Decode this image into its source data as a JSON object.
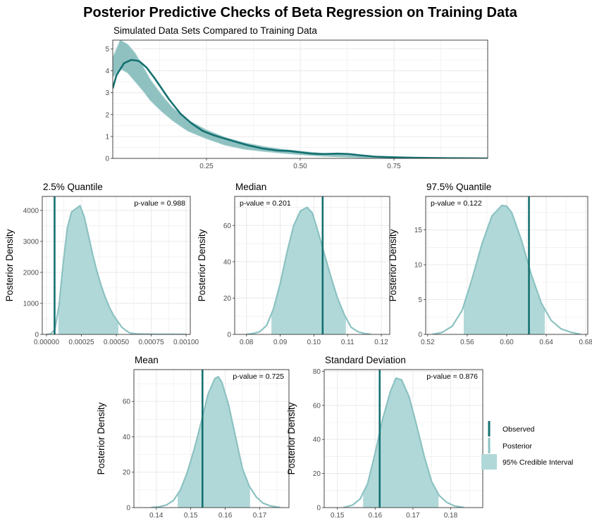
{
  "title": "Posterior Predictive Checks of Beta Regression on Training Data",
  "colors": {
    "observed": "#157070",
    "posterior_line": "#8cc2c2",
    "interval_fill": "#b1d8d8",
    "sim_fill": "#8fc1c1",
    "grid": "#ebebeb",
    "panel_border": "#333333",
    "text": "#000000",
    "tick_text": "#4d4d4d"
  },
  "legend": {
    "placement": "right",
    "items": [
      {
        "label": "Observed",
        "kind": "observed-line"
      },
      {
        "label": "Posterior",
        "kind": "posterior-line"
      },
      {
        "label": "95% Credible Interval",
        "kind": "interval-fill"
      }
    ]
  },
  "chart_data": [
    {
      "id": "overlay",
      "type": "area",
      "subtitle": "Simulated Data Sets Compared to Training Data",
      "xlim": [
        0,
        1
      ],
      "ylim": [
        0,
        5.4
      ],
      "xticks": [
        0.25,
        0.5,
        0.75
      ],
      "xtick_labels": [
        "0.25",
        "0.50",
        "0.75"
      ],
      "yticks": [
        0,
        1,
        2,
        3,
        4,
        5
      ],
      "ytick_labels": [
        "0",
        "1",
        "2",
        "3",
        "4",
        "5"
      ],
      "grid": true,
      "band_x": [
        0,
        0.02,
        0.04,
        0.06,
        0.08,
        0.1,
        0.13,
        0.16,
        0.2,
        0.25,
        0.3,
        0.35,
        0.4,
        0.45,
        0.5,
        0.55,
        0.6,
        0.65,
        0.7,
        0.75,
        0.8,
        0.85,
        0.9,
        0.95,
        1.0
      ],
      "band_upper": [
        4.6,
        5.4,
        5.2,
        4.8,
        4.2,
        3.6,
        2.9,
        2.3,
        1.75,
        1.3,
        0.95,
        0.72,
        0.55,
        0.42,
        0.33,
        0.25,
        0.19,
        0.14,
        0.1,
        0.07,
        0.04,
        0.02,
        0.01,
        0.005,
        0.0
      ],
      "band_lower": [
        3.7,
        4.1,
        3.9,
        3.5,
        3.1,
        2.65,
        2.15,
        1.72,
        1.25,
        0.9,
        0.6,
        0.42,
        0.32,
        0.24,
        0.17,
        0.11,
        0.07,
        0.04,
        0.02,
        0.01,
        0.0,
        0.0,
        0.0,
        0.0,
        0.0
      ],
      "observed_x": [
        0,
        0.01,
        0.03,
        0.05,
        0.07,
        0.09,
        0.11,
        0.13,
        0.15,
        0.18,
        0.21,
        0.24,
        0.27,
        0.3,
        0.33,
        0.36,
        0.4,
        0.44,
        0.47,
        0.5,
        0.53,
        0.56,
        0.6,
        0.63,
        0.66,
        0.7,
        0.75,
        0.8,
        0.85,
        0.9,
        0.95,
        1.0
      ],
      "observed_y": [
        3.2,
        3.8,
        4.35,
        4.5,
        4.45,
        4.15,
        3.7,
        3.2,
        2.7,
        2.05,
        1.6,
        1.25,
        1.05,
        0.9,
        0.75,
        0.6,
        0.45,
        0.36,
        0.34,
        0.28,
        0.22,
        0.2,
        0.22,
        0.2,
        0.14,
        0.08,
        0.05,
        0.03,
        0.02,
        0.01,
        0.005,
        0.0
      ]
    },
    {
      "id": "q025",
      "type": "area",
      "title": "2.5% Quantile",
      "ylabel": "Posterior Density",
      "xlim": [
        -3e-05,
        0.00103
      ],
      "ylim": [
        0,
        4450
      ],
      "xticks": [
        0,
        0.00025,
        0.0005,
        0.00075,
        0.001
      ],
      "xtick_labels": [
        "0.00000",
        "0.00025",
        "0.00050",
        "0.00075",
        "0.00100"
      ],
      "yticks": [
        0,
        1000,
        2000,
        3000,
        4000
      ],
      "ytick_labels": [
        "0",
        "1000",
        "2000",
        "3000",
        "4000"
      ],
      "pvalue": "p-value = 0.988",
      "pvalue_position": "top-right",
      "observed": 5.8e-05,
      "interval": [
        8.5e-05,
        0.000515
      ],
      "density_x": [
        0.0,
        3e-05,
        6e-05,
        9e-05,
        0.00012,
        0.00015,
        0.00018,
        0.00021,
        0.00024,
        0.00027,
        0.0003,
        0.00033,
        0.00036,
        0.00039,
        0.00042,
        0.00045,
        0.00048,
        0.00051,
        0.00054,
        0.00057,
        0.0006,
        0.00065,
        0.0007,
        0.0008,
        0.0009,
        0.001
      ],
      "density_y": [
        0,
        15,
        150,
        950,
        2300,
        3450,
        3950,
        4050,
        4150,
        3800,
        3200,
        2600,
        2050,
        1600,
        1200,
        880,
        620,
        420,
        230,
        120,
        40,
        15,
        10,
        5,
        2,
        0
      ]
    },
    {
      "id": "median",
      "type": "area",
      "title": "Median",
      "ylabel": "Posterior Density",
      "xlim": [
        0.0765,
        0.1225
      ],
      "ylim": [
        0,
        76
      ],
      "xticks": [
        0.08,
        0.09,
        0.1,
        0.11,
        0.12
      ],
      "xtick_labels": [
        "0.08",
        "0.09",
        "0.10",
        "0.11",
        "0.12"
      ],
      "yticks": [
        0,
        20,
        40,
        60
      ],
      "ytick_labels": [
        "0",
        "20",
        "40",
        "60"
      ],
      "pvalue": "p-value = 0.201",
      "pvalue_position": "top-left",
      "observed": 0.1026,
      "interval": [
        0.0874,
        0.1095
      ],
      "density_x": [
        0.08,
        0.082,
        0.084,
        0.086,
        0.088,
        0.09,
        0.092,
        0.094,
        0.096,
        0.098,
        0.0995,
        0.101,
        0.103,
        0.105,
        0.107,
        0.109,
        0.111,
        0.113,
        0.115,
        0.117
      ],
      "density_y": [
        0,
        0.5,
        1.5,
        5,
        14,
        28,
        45,
        60,
        68,
        70,
        67,
        58,
        45,
        32,
        20,
        11,
        4,
        1.5,
        0.5,
        0
      ]
    },
    {
      "id": "q975",
      "type": "area",
      "title": "97.5% Quantile",
      "ylabel": "Posterior Density",
      "xlim": [
        0.518,
        0.682
      ],
      "ylim": [
        0,
        19.8
      ],
      "xticks": [
        0.52,
        0.56,
        0.6,
        0.64,
        0.68
      ],
      "xtick_labels": [
        "0.52",
        "0.56",
        "0.60",
        "0.64",
        "0.68"
      ],
      "yticks": [
        0,
        5,
        10,
        15
      ],
      "ytick_labels": [
        "0",
        "5",
        "10",
        "15"
      ],
      "pvalue": "p-value = 0.122",
      "pvalue_position": "top-left",
      "observed": 0.6225,
      "interval": [
        0.5565,
        0.6385
      ],
      "density_x": [
        0.525,
        0.535,
        0.545,
        0.555,
        0.565,
        0.575,
        0.585,
        0.595,
        0.6,
        0.605,
        0.615,
        0.625,
        0.635,
        0.645,
        0.655,
        0.665,
        0.675
      ],
      "density_y": [
        0,
        0.3,
        1.2,
        3.5,
        8,
        13,
        17,
        18.5,
        18.4,
        17.5,
        13.5,
        8.5,
        4.5,
        2,
        0.8,
        0.3,
        0
      ]
    },
    {
      "id": "mean",
      "type": "area",
      "title": "Mean",
      "ylabel": "Posterior Density",
      "xlim": [
        0.1335,
        0.1785
      ],
      "ylim": [
        0,
        78
      ],
      "xticks": [
        0.14,
        0.15,
        0.16,
        0.17
      ],
      "xtick_labels": [
        "0.14",
        "0.15",
        "0.16",
        "0.17"
      ],
      "yticks": [
        0,
        20,
        40,
        60
      ],
      "ytick_labels": [
        "0",
        "20",
        "40",
        "60"
      ],
      "pvalue": "p-value = 0.725",
      "pvalue_position": "top-right",
      "observed": 0.1534,
      "interval": [
        0.1462,
        0.1672
      ],
      "density_x": [
        0.1385,
        0.141,
        0.143,
        0.145,
        0.147,
        0.149,
        0.151,
        0.153,
        0.155,
        0.157,
        0.158,
        0.159,
        0.161,
        0.163,
        0.165,
        0.167,
        0.169,
        0.171,
        0.173,
        0.176
      ],
      "density_y": [
        0,
        0.5,
        1.5,
        4,
        10,
        20,
        33,
        48,
        64,
        73,
        74,
        71,
        58,
        40,
        22,
        12,
        6,
        2.5,
        1,
        0
      ]
    },
    {
      "id": "sd",
      "type": "area",
      "title": "Standard Deviation",
      "ylabel": "Posterior Density",
      "xlim": [
        0.1465,
        0.1885
      ],
      "ylim": [
        0,
        81
      ],
      "xticks": [
        0.15,
        0.16,
        0.17,
        0.18
      ],
      "xtick_labels": [
        "0.15",
        "0.16",
        "0.17",
        "0.18"
      ],
      "yticks": [
        0,
        20,
        40,
        60,
        80
      ],
      "ytick_labels": [
        "0",
        "20",
        "40",
        "60",
        "80"
      ],
      "pvalue": "p-value = 0.876",
      "pvalue_position": "top-right",
      "observed": 0.1612,
      "interval": [
        0.1568,
        0.1768
      ],
      "density_x": [
        0.1515,
        0.154,
        0.156,
        0.158,
        0.16,
        0.162,
        0.164,
        0.1655,
        0.167,
        0.169,
        0.171,
        0.173,
        0.175,
        0.177,
        0.179,
        0.181,
        0.1835
      ],
      "density_y": [
        0,
        1.5,
        5,
        14,
        32,
        52,
        68,
        76,
        75,
        65,
        48,
        30,
        15,
        7,
        3,
        1,
        0
      ]
    }
  ]
}
